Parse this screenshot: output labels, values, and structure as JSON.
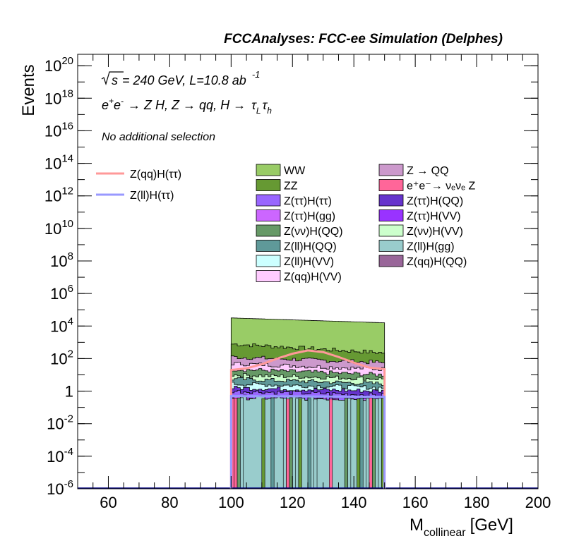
{
  "header": {
    "title": "FCCAnalyses: FCC-ee Simulation (Delphes)"
  },
  "annotations": {
    "energy_prefix": "√",
    "energy_s": "s",
    "energy_rest": "= 240 GeV, L=10.8 ab",
    "energy_exp": "-1",
    "process_a": "e",
    "process_a_sup": "+",
    "process_b": "e",
    "process_b_sup": "-",
    "process_rest": "→ Z H, Z  → qq, H  →",
    "process_tau": "τ",
    "process_sub_L": "L",
    "process_sub_h": "h",
    "selection": "No additional selection"
  },
  "legend_signals": [
    {
      "label": "Z(qq)H(ττ)",
      "color": "#ff9999"
    },
    {
      "label": "Z(ll)H(ττ)",
      "color": "#9999ff"
    }
  ],
  "legend_backgrounds_col1": [
    {
      "label": "WW",
      "color": "#99cc66"
    },
    {
      "label": "ZZ",
      "color": "#669933"
    },
    {
      "label": "Z(ττ)H(ττ)",
      "color": "#9966ff"
    },
    {
      "label": "Z(ττ)H(gg)",
      "color": "#cc66ff"
    },
    {
      "label": "Z(νν)H(QQ)",
      "color": "#669966"
    },
    {
      "label": "Z(ll)H(QQ)",
      "color": "#5f9999"
    },
    {
      "label": "Z(ll)H(VV)",
      "color": "#ccffff"
    },
    {
      "label": "Z(qq)H(VV)",
      "color": "#ffccff"
    }
  ],
  "legend_backgrounds_col2": [
    {
      "label": "Z → QQ",
      "color": "#cc99cc"
    },
    {
      "label": "e⁺e⁻→ νₑνₑ Z",
      "color": "#ff6699"
    },
    {
      "label": "Z(ττ)H(QQ)",
      "color": "#6633cc"
    },
    {
      "label": "Z(ττ)H(VV)",
      "color": "#9933ff"
    },
    {
      "label": "Z(νν)H(VV)",
      "color": "#ccffcc"
    },
    {
      "label": "Z(ll)H(gg)",
      "color": "#99cccc"
    },
    {
      "label": "Z(qq)H(QQ)",
      "color": "#996699"
    }
  ],
  "chart_data": {
    "type": "area",
    "title": "FCCAnalyses: FCC-ee Simulation (Delphes)",
    "xlabel_main": "M",
    "xlabel_sub": "collinear",
    "xlabel_unit": "[GeV]",
    "ylabel": "Events",
    "xlim": [
      50,
      200
    ],
    "ylim_log10": [
      -6,
      20.7
    ],
    "log_y": true,
    "x_ticks": [
      60,
      80,
      100,
      120,
      140,
      160,
      180,
      200
    ],
    "y_tick_labels": [
      {
        "exp": 20,
        "base": "10",
        "sup": "20"
      },
      {
        "exp": 18,
        "base": "10",
        "sup": "18"
      },
      {
        "exp": 16,
        "base": "10",
        "sup": "16"
      },
      {
        "exp": 14,
        "base": "10",
        "sup": "14"
      },
      {
        "exp": 12,
        "base": "10",
        "sup": "12"
      },
      {
        "exp": 10,
        "base": "10",
        "sup": "10"
      },
      {
        "exp": 8,
        "base": "10",
        "sup": "8"
      },
      {
        "exp": 6,
        "base": "10",
        "sup": "6"
      },
      {
        "exp": 4,
        "base": "10",
        "sup": "4"
      },
      {
        "exp": 2,
        "base": "10",
        "sup": "2"
      },
      {
        "exp": 0,
        "base": "1",
        "sup": ""
      },
      {
        "exp": -2,
        "base": "10",
        "sup": "-2"
      },
      {
        "exp": -4,
        "base": "10",
        "sup": "-4"
      },
      {
        "exp": -6,
        "base": "10",
        "sup": "-6"
      }
    ],
    "bin_range": [
      100,
      150
    ],
    "bin_width": 1,
    "stack_fill_top_log10": {
      "start": 4.5,
      "end": 4.2
    },
    "stack_bands": [
      {
        "name": "WW",
        "color": "#99cc66",
        "top_log10": [
          4.5,
          4.2
        ]
      },
      {
        "name": "ZZ",
        "color": "#669933",
        "top_log10": [
          2.9,
          2.35
        ]
      },
      {
        "name": "Z → QQ",
        "color": "#cc99cc",
        "top_log10": [
          2.1,
          1.75
        ]
      },
      {
        "name": "Z(qq)H(VV)",
        "color": "#ffccff",
        "top_log10": [
          1.7,
          1.35
        ]
      },
      {
        "name": "Z(νν)H(QQ)",
        "color": "#669966",
        "top_log10": [
          1.35,
          1.0
        ]
      },
      {
        "name": "Z(νν)H(VV)",
        "color": "#ccffcc",
        "top_log10": [
          1.0,
          0.75
        ]
      },
      {
        "name": "Z(ll)H(QQ)",
        "color": "#5f9999",
        "top_log10": [
          0.75,
          0.45
        ]
      },
      {
        "name": "Z(ll)H(VV)",
        "color": "#ccffff",
        "top_log10": [
          0.45,
          0.2
        ]
      },
      {
        "name": "Z(ττ)H(QQ)",
        "color": "#6633cc",
        "top_log10": [
          0.2,
          0.0
        ]
      },
      {
        "name": "Z(ττ)H(ττ)",
        "color": "#9966ff",
        "top_log10": [
          0.0,
          -0.25
        ]
      },
      {
        "name": "Z(ττ)H(gg)",
        "color": "#cc66ff",
        "top_log10": [
          -0.3,
          -0.6
        ]
      },
      {
        "name": "Z(ll)H(gg)",
        "color": "#99cccc",
        "top_log10": [
          -0.4,
          -0.5
        ]
      }
    ],
    "signal_qq_tautau": {
      "name": "Z(qq)H(ττ)",
      "color": "#ff9999",
      "x": [
        100,
        105,
        110,
        115,
        120,
        125,
        130,
        135,
        140,
        145,
        150
      ],
      "log10_y": [
        1.3,
        1.4,
        1.65,
        2.0,
        2.3,
        2.5,
        2.4,
        2.1,
        1.75,
        1.45,
        1.35
      ]
    },
    "signal_ll_tautau": {
      "name": "Z(ll)H(ττ)",
      "color": "#9999ff",
      "x": [
        100,
        150
      ],
      "log10_y": [
        -0.3,
        -0.35
      ]
    }
  }
}
